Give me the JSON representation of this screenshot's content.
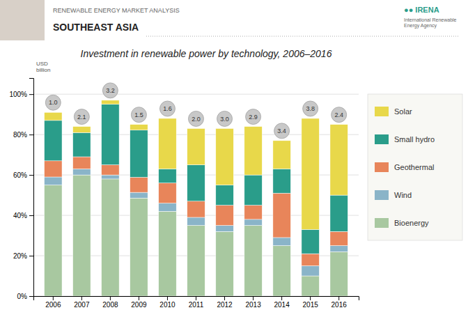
{
  "chart_data": {
    "type": "bar",
    "stacked": true,
    "title": "Investment in renewable power by technology, 2006–2016",
    "subtitle": "SOUTHEAST ASIA",
    "annotations": [
      "RENEWABLE ENERGY MARKET ANALYSIS",
      "●● IRENA",
      "International Renewable\nEnergy Agency",
      "USD\nbillion"
    ],
    "categories": [
      "2006",
      "2007",
      "2008",
      "2009",
      "2010",
      "2011",
      "2012",
      "2013",
      "2014",
      "2015",
      "2016"
    ],
    "series": [
      {
        "name": "Bioenergy",
        "color": "#a8c8a0",
        "values": [
          55,
          60,
          58,
          48.5714,
          42,
          35,
          32,
          35,
          25,
          10,
          22
        ]
      },
      {
        "name": "Wind",
        "color": "#8ab4c8",
        "values": [
          4,
          3,
          2,
          2.8022,
          4,
          4,
          3,
          3,
          4,
          5,
          3
        ]
      },
      {
        "name": "Geothermal",
        "color": "#e8855a",
        "values": [
          8,
          6,
          5,
          7.4725,
          10,
          8,
          10,
          7,
          22,
          6,
          7
        ]
      },
      {
        "name": "Small hydro",
        "color": "#2a9d8a",
        "values": [
          20,
          12,
          30,
          23.3516,
          7,
          18,
          10,
          15,
          12,
          12,
          18
        ]
      },
      {
        "name": "Solar",
        "color": "#e8d84a",
        "values": [
          4,
          3,
          2,
          2.8022,
          25,
          18,
          28,
          24,
          14,
          55,
          35
        ]
      }
    ],
    "totals": [
      1.0,
      2.1,
      3.2,
      1.5,
      1.6,
      2.0,
      3.0,
      2.9,
      3.4,
      3.8,
      2.4
    ],
    "total_labels": [
      "1.0",
      "2.1",
      "3.2",
      "1.5",
      "1.6",
      "2.0",
      "3.0",
      "2.9",
      "3.4",
      "3.8",
      "2.4"
    ],
    "ylim": [
      0,
      108
    ],
    "yticks": [
      {
        "value": 0,
        "label": "0%"
      },
      {
        "value": 20,
        "label": "20%"
      },
      {
        "value": 40,
        "label": "40%"
      },
      {
        "value": 60,
        "label": "60%"
      },
      {
        "value": 80,
        "label": "80%"
      },
      {
        "value": 100,
        "label": "100%"
      }
    ],
    "grid": true,
    "legend": "right"
  }
}
